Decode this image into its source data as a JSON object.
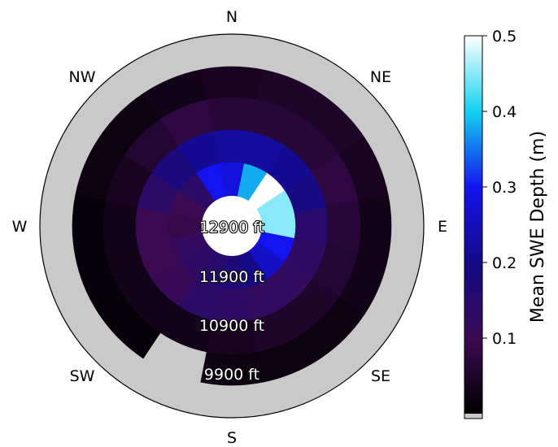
{
  "chart_data": {
    "type": "heatmap",
    "subtype": "polar",
    "title": "",
    "directions": [
      "N",
      "NE",
      "E",
      "SE",
      "S",
      "SW",
      "W",
      "NW"
    ],
    "elevation_rings": [
      "9900 ft",
      "10900 ft",
      "11900 ft",
      "12900 ft"
    ],
    "sector_count": 16,
    "sector_start": "N",
    "sector_order": "clockwise",
    "values": {
      "9900 ft": [
        0.04,
        0.05,
        0.05,
        0.04,
        0.03,
        0.03,
        0.02,
        0.02,
        0.02,
        null,
        0.01,
        0.01,
        0.01,
        0.02,
        0.02,
        0.03
      ],
      "10900 ft": [
        0.07,
        0.07,
        0.07,
        0.08,
        0.07,
        0.06,
        0.05,
        0.05,
        0.04,
        0.03,
        0.03,
        0.03,
        0.03,
        0.04,
        0.06,
        0.08
      ],
      "11900 ft": [
        0.22,
        0.22,
        0.21,
        0.19,
        0.15,
        0.13,
        0.12,
        0.12,
        0.13,
        0.14,
        0.11,
        0.1,
        0.1,
        0.14,
        0.18,
        0.21
      ],
      "12900 ft": [
        0.28,
        0.38,
        0.5,
        0.45,
        0.45,
        0.3,
        0.26,
        0.2,
        0.17,
        0.15,
        0.13,
        0.12,
        0.09,
        0.1,
        0.14,
        0.3
      ]
    },
    "missing_color": "#c9c9c9",
    "colorbar": {
      "label": "Mean SWE Depth (m)",
      "range": [
        0.0,
        0.5
      ],
      "ticks": [
        0.1,
        0.2,
        0.3,
        0.4,
        0.5
      ],
      "tick_labels": [
        "0.1",
        "0.2",
        "0.3",
        "0.4",
        "0.5"
      ],
      "colormap": [
        {
          "v": 0.0,
          "color": "#000000"
        },
        {
          "v": 0.1,
          "color": "#3b0a52"
        },
        {
          "v": 0.2,
          "color": "#140a88"
        },
        {
          "v": 0.3,
          "color": "#1414f0"
        },
        {
          "v": 0.4,
          "color": "#14d2f0"
        },
        {
          "v": 0.5,
          "color": "#ffffff"
        }
      ]
    }
  }
}
